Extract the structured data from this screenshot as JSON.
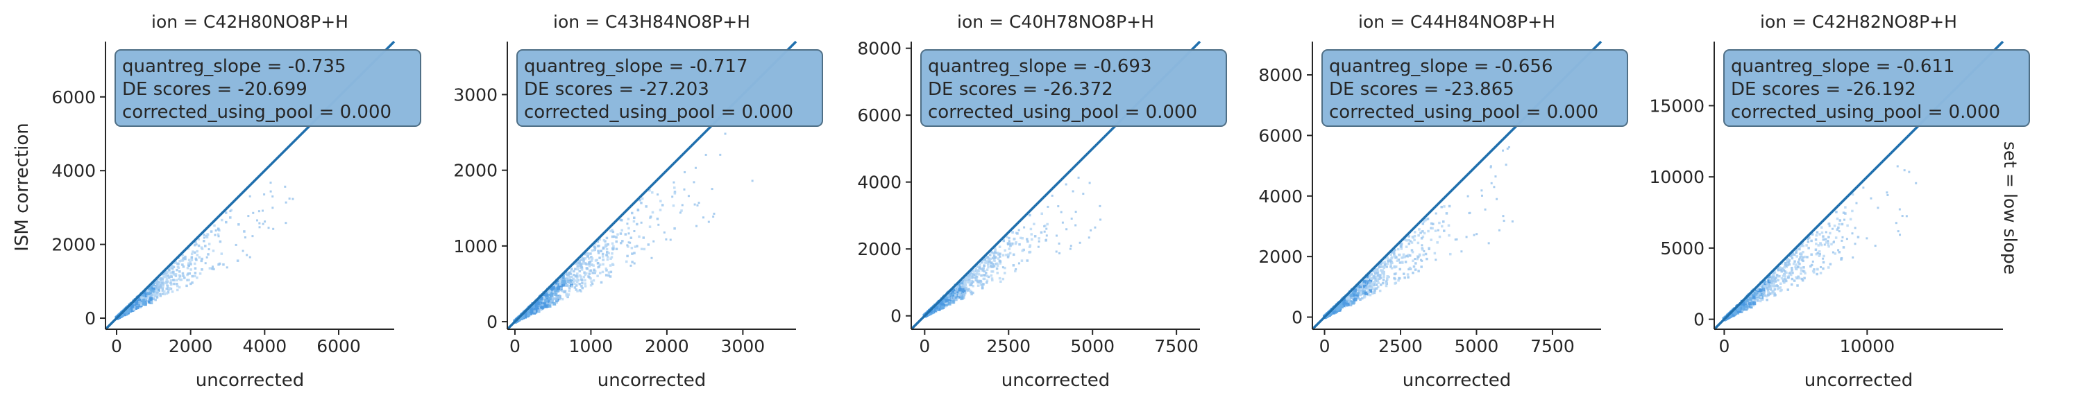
{
  "figure": {
    "row_label": "set = low slope",
    "ylabel": "ISM correction"
  },
  "chart_data": [
    {
      "type": "scatter",
      "title": "ion = C42H80NO8P+H",
      "xlabel": "uncorrected",
      "ylabel": "ISM correction",
      "xlim": [
        -300,
        7500
      ],
      "ylim": [
        -300,
        7500
      ],
      "xticks": [
        0,
        2000,
        4000,
        6000
      ],
      "yticks": [
        0,
        2000,
        4000,
        6000
      ],
      "xtick_labels": [
        "0",
        "2000",
        "4000",
        "6000"
      ],
      "ytick_labels": [
        "0",
        "2000",
        "4000",
        "6000"
      ],
      "annotation": [
        "quantreg_slope = -0.735",
        "DE scores = -20.699",
        "corrected_using_pool = 0.000"
      ],
      "slope": -0.735,
      "x_extent": 5500,
      "cluster_extent": 3000
    },
    {
      "type": "scatter",
      "title": "ion = C43H84NO8P+H",
      "xlabel": "uncorrected",
      "ylabel": "",
      "xlim": [
        -100,
        3700
      ],
      "ylim": [
        -100,
        3700
      ],
      "xticks": [
        0,
        1000,
        2000,
        3000
      ],
      "yticks": [
        0,
        1000,
        2000,
        3000
      ],
      "xtick_labels": [
        "0",
        "1000",
        "2000",
        "3000"
      ],
      "ytick_labels": [
        "0",
        "1000",
        "2000",
        "3000"
      ],
      "annotation": [
        "quantreg_slope = -0.717",
        "DE scores = -27.203",
        "corrected_using_pool = 0.000"
      ],
      "slope": -0.717,
      "x_extent": 3400,
      "cluster_extent": 2000
    },
    {
      "type": "scatter",
      "title": "ion = C40H78NO8P+H",
      "xlabel": "uncorrected",
      "ylabel": "",
      "xlim": [
        -400,
        8200
      ],
      "ylim": [
        -400,
        8200
      ],
      "xticks": [
        0,
        2500,
        5000,
        7500
      ],
      "yticks": [
        0,
        2000,
        4000,
        6000,
        8000
      ],
      "xtick_labels": [
        "0",
        "2500",
        "5000",
        "7500"
      ],
      "ytick_labels": [
        "0",
        "2000",
        "4000",
        "6000",
        "8000"
      ],
      "annotation": [
        "quantreg_slope = -0.693",
        "DE scores = -26.372",
        "corrected_using_pool = 0.000"
      ],
      "slope": -0.693,
      "x_extent": 5800,
      "cluster_extent": 3300
    },
    {
      "type": "scatter",
      "title": "ion = C44H84NO8P+H",
      "xlabel": "uncorrected",
      "ylabel": "",
      "xlim": [
        -400,
        9100
      ],
      "ylim": [
        -400,
        9100
      ],
      "xticks": [
        0,
        2500,
        5000,
        7500
      ],
      "yticks": [
        0,
        2000,
        4000,
        6000,
        8000
      ],
      "xtick_labels": [
        "0",
        "2500",
        "5000",
        "7500"
      ],
      "ytick_labels": [
        "0",
        "2000",
        "4000",
        "6000",
        "8000"
      ],
      "annotation": [
        "quantreg_slope = -0.656",
        "DE scores = -23.865",
        "corrected_using_pool = 0.000"
      ],
      "slope": -0.656,
      "x_extent": 6200,
      "cluster_extent": 3900
    },
    {
      "type": "scatter",
      "title": "ion = C42H82NO8P+H",
      "xlabel": "uncorrected",
      "ylabel": "",
      "xlim": [
        -700,
        19500
      ],
      "ylim": [
        -700,
        19500
      ],
      "xticks": [
        0,
        10000
      ],
      "yticks": [
        0,
        5000,
        10000,
        15000
      ],
      "xtick_labels": [
        "0",
        "10000"
      ],
      "ytick_labels": [
        "0",
        "5000",
        "10000",
        "15000"
      ],
      "annotation": [
        "quantreg_slope = -0.611",
        "DE scores = -26.192",
        "corrected_using_pool = 0.000"
      ],
      "slope": -0.611,
      "x_extent": 13000,
      "cluster_extent": 8500
    }
  ]
}
